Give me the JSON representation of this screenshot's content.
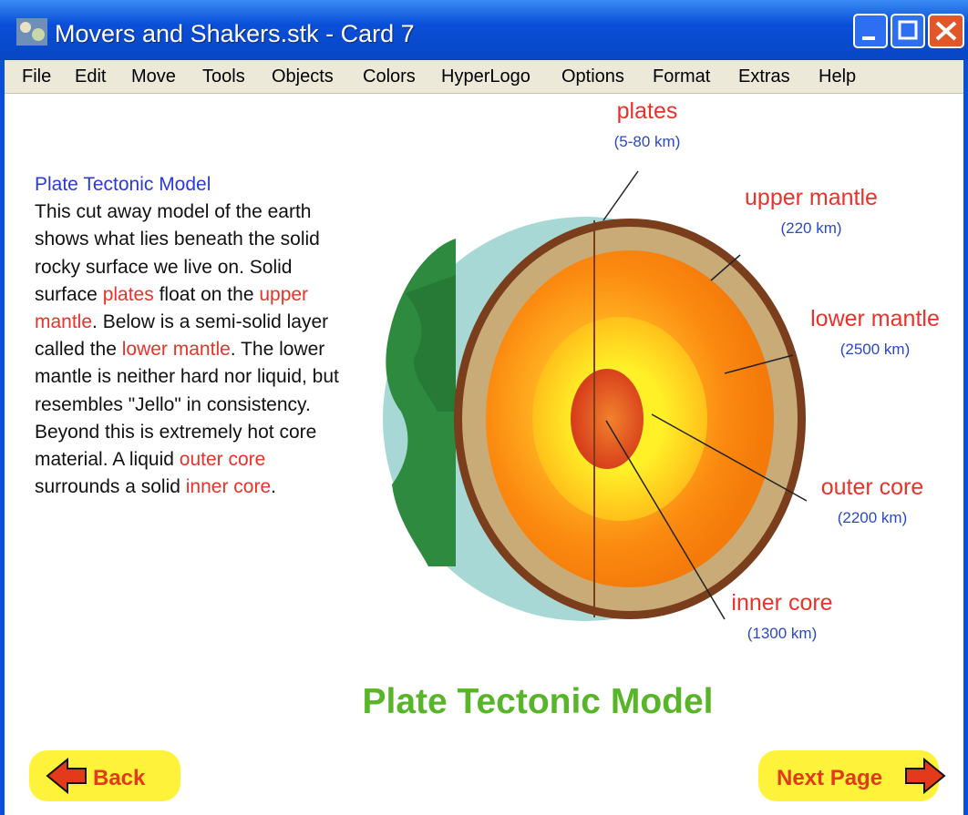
{
  "window": {
    "title": "Movers and Shakers.stk - Card 7"
  },
  "menu": [
    "File",
    "Edit",
    "Move",
    "Tools",
    "Objects",
    "Colors",
    "HyperLogo",
    "Options",
    "Format",
    "Extras",
    "Help"
  ],
  "text": {
    "heading": "Plate Tectonic Model",
    "body": [
      {
        "text": "This cut away model of the earth shows what lies beneath the solid rocky surface we live on. Solid surface "
      },
      {
        "text": "plates",
        "color": "#e8322a"
      },
      {
        "text": " float on the "
      },
      {
        "text": "upper mantle",
        "color": "#e8322a"
      },
      {
        "text": ".  Below is a semi-solid layer called the "
      },
      {
        "text": "lower mantle",
        "color": "#e8322a"
      },
      {
        "text": ".  The lower mantle is neither hard nor liquid, but resembles \"Jello\" in consistency.  Beyond this is extremely hot core material. A liquid "
      },
      {
        "text": "outer core",
        "color": "#e8322a"
      },
      {
        "text": " surrounds a solid "
      },
      {
        "text": "inner core",
        "color": "#e8322a"
      },
      {
        "text": "."
      }
    ]
  },
  "labels": [
    {
      "name": "plates",
      "thickness": "(5-80 km)"
    },
    {
      "name": "upper mantle",
      "thickness": "(220 km)"
    },
    {
      "name": "lower mantle",
      "thickness": "(2500 km)"
    },
    {
      "name": "outer core",
      "thickness": "(2200 km)"
    },
    {
      "name": "inner core",
      "thickness": "(1300 km)"
    }
  ],
  "title": "Plate Tectonic Model",
  "buttons": {
    "back": "Back",
    "next": "Next Page"
  }
}
